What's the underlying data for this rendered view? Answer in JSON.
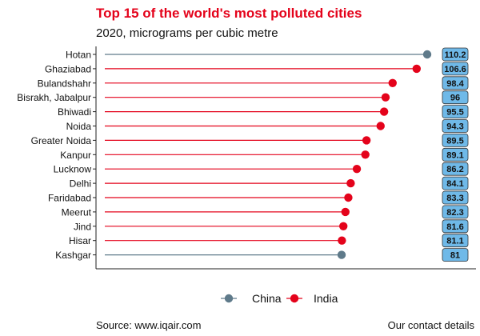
{
  "title": "Top 15 of the world's most polluted cities",
  "subtitle": "2020, micrograms per cubic metre",
  "source": "Source: www.iqair.com",
  "credit": "Our contact details",
  "colors": {
    "China": "#5f7a8a",
    "India": "#e4031b",
    "label_bg": "#6fb9e8",
    "label_border": "#333333"
  },
  "chart_data": {
    "type": "lollipop",
    "title": "Top 15 of the world's most polluted cities",
    "subtitle": "2020, micrograms per cubic metre",
    "categories": [
      "Hotan",
      "Ghaziabad",
      "Bulandshahr",
      "Bisrakh, Jabalpur",
      "Bhiwadi",
      "Noida",
      "Greater Noida",
      "Kanpur",
      "Lucknow",
      "Delhi",
      "Faridabad",
      "Meerut",
      "Jind",
      "Hisar",
      "Kashgar"
    ],
    "values": [
      110.2,
      106.6,
      98.4,
      96,
      95.5,
      94.3,
      89.5,
      89.1,
      86.2,
      84.1,
      83.3,
      82.3,
      81.6,
      81.1,
      81
    ],
    "labels": [
      "110.2",
      "106.6",
      "98.4",
      "96",
      "95.5",
      "94.3",
      "89.5",
      "89.1",
      "86.2",
      "84.1",
      "83.3",
      "82.3",
      "81.6",
      "81.1",
      "81"
    ],
    "country": [
      "China",
      "India",
      "India",
      "India",
      "India",
      "India",
      "India",
      "India",
      "India",
      "India",
      "India",
      "India",
      "India",
      "India",
      "China"
    ],
    "legend": [
      "China",
      "India"
    ],
    "legend_position": "bottom",
    "grid": false
  }
}
